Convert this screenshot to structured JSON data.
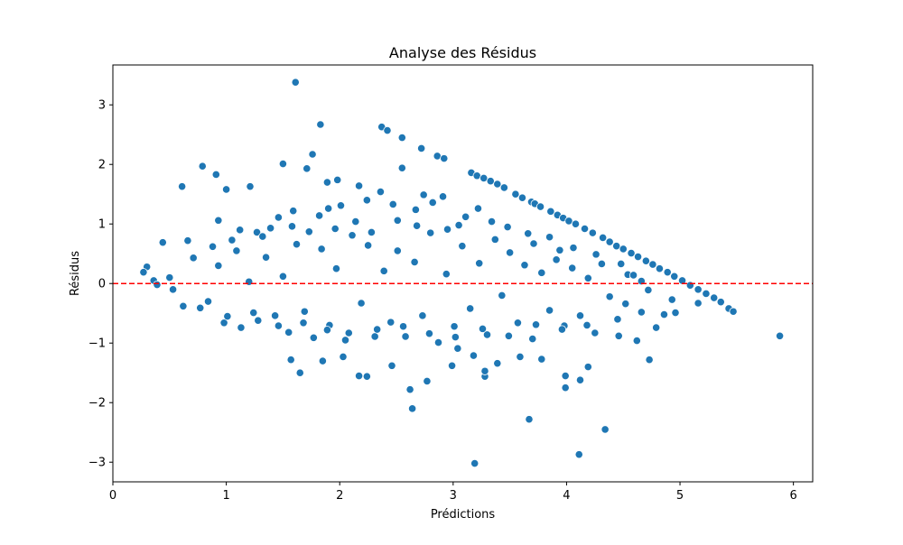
{
  "chart_data": {
    "type": "scatter",
    "title": "Analyse des Résidus",
    "xlabel": "Prédictions",
    "ylabel": "Résidus",
    "xlim": [
      0,
      6.17
    ],
    "ylim": [
      -3.33,
      3.67
    ],
    "xticks": [
      0,
      1,
      2,
      3,
      4,
      5,
      6
    ],
    "yticks": [
      -3,
      -2,
      -1,
      0,
      1,
      2,
      3
    ],
    "xtick_labels": [
      "0",
      "1",
      "2",
      "3",
      "4",
      "5",
      "6"
    ],
    "ytick_labels": [
      "−3",
      "−2",
      "−1",
      "0",
      "1",
      "2",
      "3"
    ],
    "grid": false,
    "reference_line": {
      "y": 0,
      "style": "dashed",
      "color": "#ff0000"
    },
    "marker_color": "#1f77b4",
    "series": [
      {
        "points": [
          [
            1.61,
            3.38
          ],
          [
            1.83,
            2.67
          ],
          [
            2.37,
            2.63
          ],
          [
            2.42,
            2.57
          ],
          [
            2.55,
            2.45
          ],
          [
            2.72,
            2.27
          ],
          [
            1.76,
            2.17
          ],
          [
            0.79,
            1.97
          ],
          [
            1.5,
            2.01
          ],
          [
            1.71,
            1.93
          ],
          [
            0.91,
            1.83
          ],
          [
            2.55,
            1.94
          ],
          [
            2.86,
            2.14
          ],
          [
            2.92,
            2.1
          ],
          [
            1.98,
            1.74
          ],
          [
            1.89,
            1.7
          ],
          [
            2.17,
            1.64
          ],
          [
            0.61,
            1.63
          ],
          [
            1.21,
            1.63
          ],
          [
            1.0,
            1.58
          ],
          [
            3.16,
            1.86
          ],
          [
            3.21,
            1.81
          ],
          [
            3.27,
            1.77
          ],
          [
            3.33,
            1.72
          ],
          [
            3.39,
            1.67
          ],
          [
            3.45,
            1.61
          ],
          [
            3.55,
            1.5
          ],
          [
            3.61,
            1.44
          ],
          [
            3.69,
            1.37
          ],
          [
            3.72,
            1.34
          ],
          [
            3.77,
            1.29
          ],
          [
            3.86,
            1.21
          ],
          [
            3.92,
            1.15
          ],
          [
            3.97,
            1.1
          ],
          [
            4.02,
            1.05
          ],
          [
            4.08,
            1.0
          ],
          [
            4.16,
            0.92
          ],
          [
            4.23,
            0.85
          ],
          [
            4.32,
            0.77
          ],
          [
            4.38,
            0.7
          ],
          [
            4.44,
            0.63
          ],
          [
            4.5,
            0.58
          ],
          [
            4.57,
            0.51
          ],
          [
            4.63,
            0.45
          ],
          [
            4.7,
            0.38
          ],
          [
            4.76,
            0.32
          ],
          [
            4.82,
            0.25
          ],
          [
            4.89,
            0.19
          ],
          [
            4.95,
            0.12
          ],
          [
            5.02,
            0.05
          ],
          [
            5.09,
            -0.03
          ],
          [
            5.16,
            -0.1
          ],
          [
            5.23,
            -0.17
          ],
          [
            5.3,
            -0.24
          ],
          [
            5.36,
            -0.31
          ],
          [
            5.43,
            -0.42
          ],
          [
            5.47,
            -0.47
          ],
          [
            5.88,
            -0.88
          ],
          [
            3.19,
            -3.02
          ],
          [
            4.11,
            -2.87
          ],
          [
            4.34,
            -2.45
          ],
          [
            3.67,
            -2.28
          ],
          [
            2.64,
            -2.1
          ],
          [
            2.62,
            -1.78
          ],
          [
            2.77,
            -1.64
          ],
          [
            3.99,
            -1.75
          ],
          [
            3.99,
            -1.55
          ],
          [
            4.19,
            -1.4
          ],
          [
            3.28,
            -1.56
          ],
          [
            3.28,
            -1.47
          ],
          [
            3.39,
            -1.34
          ],
          [
            3.59,
            -1.23
          ],
          [
            3.78,
            -1.27
          ],
          [
            3.18,
            -1.21
          ],
          [
            3.04,
            -1.09
          ],
          [
            2.99,
            -1.38
          ],
          [
            2.46,
            -1.38
          ],
          [
            2.17,
            -1.55
          ],
          [
            2.24,
            -1.56
          ],
          [
            1.57,
            -1.28
          ],
          [
            1.65,
            -1.5
          ],
          [
            1.85,
            -1.3
          ],
          [
            2.03,
            -1.23
          ],
          [
            4.73,
            -1.28
          ],
          [
            4.62,
            -0.96
          ],
          [
            4.46,
            -0.88
          ],
          [
            4.96,
            -0.49
          ],
          [
            5.16,
            -0.33
          ],
          [
            4.12,
            -1.62
          ],
          [
            4.06,
            0.6
          ],
          [
            3.85,
            0.78
          ],
          [
            3.66,
            0.84
          ],
          [
            4.54,
            0.15
          ],
          [
            4.66,
            0.04
          ],
          [
            3.22,
            1.26
          ],
          [
            3.05,
            0.98
          ],
          [
            2.91,
            1.46
          ],
          [
            2.74,
            1.49
          ],
          [
            2.82,
            1.36
          ],
          [
            2.67,
            1.24
          ],
          [
            2.47,
            1.33
          ],
          [
            2.36,
            1.54
          ],
          [
            2.24,
            1.4
          ],
          [
            2.01,
            1.31
          ],
          [
            1.9,
            1.26
          ],
          [
            1.82,
            1.14
          ],
          [
            1.59,
            1.22
          ],
          [
            1.46,
            1.11
          ],
          [
            1.39,
            0.93
          ],
          [
            1.27,
            0.86
          ],
          [
            1.12,
            0.9
          ],
          [
            0.93,
            1.06
          ],
          [
            0.66,
            0.72
          ],
          [
            0.44,
            0.69
          ],
          [
            0.3,
            0.28
          ],
          [
            0.27,
            0.19
          ],
          [
            0.36,
            0.05
          ],
          [
            0.39,
            -0.02
          ],
          [
            0.5,
            0.1
          ],
          [
            0.53,
            -0.1
          ],
          [
            0.62,
            -0.38
          ],
          [
            0.71,
            0.43
          ],
          [
            0.84,
            -0.3
          ],
          [
            0.93,
            0.3
          ],
          [
            0.98,
            -0.66
          ],
          [
            1.09,
            0.55
          ],
          [
            1.13,
            -0.74
          ],
          [
            1.2,
            0.03
          ],
          [
            1.28,
            -0.62
          ],
          [
            1.35,
            0.44
          ],
          [
            1.43,
            -0.54
          ],
          [
            1.5,
            0.12
          ],
          [
            1.55,
            -0.82
          ],
          [
            1.62,
            0.66
          ],
          [
            1.69,
            -0.47
          ],
          [
            1.77,
            -0.91
          ],
          [
            1.84,
            0.58
          ],
          [
            1.91,
            -0.7
          ],
          [
            1.97,
            0.25
          ],
          [
            2.05,
            -0.95
          ],
          [
            2.11,
            0.81
          ],
          [
            2.19,
            -0.33
          ],
          [
            2.25,
            0.64
          ],
          [
            2.31,
            -0.89
          ],
          [
            2.39,
            0.21
          ],
          [
            2.45,
            -0.65
          ],
          [
            2.51,
            0.55
          ],
          [
            2.58,
            -0.89
          ],
          [
            2.66,
            0.36
          ],
          [
            2.73,
            -0.54
          ],
          [
            2.8,
            0.85
          ],
          [
            2.87,
            -0.99
          ],
          [
            2.94,
            0.16
          ],
          [
            3.01,
            -0.72
          ],
          [
            3.08,
            0.63
          ],
          [
            3.15,
            -0.42
          ],
          [
            3.23,
            0.34
          ],
          [
            3.3,
            -0.86
          ],
          [
            3.37,
            0.74
          ],
          [
            3.43,
            -0.2
          ],
          [
            3.5,
            0.52
          ],
          [
            3.57,
            -0.66
          ],
          [
            3.63,
            0.31
          ],
          [
            3.7,
            -0.93
          ],
          [
            3.78,
            0.18
          ],
          [
            3.85,
            -0.45
          ],
          [
            3.91,
            0.4
          ],
          [
            3.98,
            -0.71
          ],
          [
            4.05,
            0.26
          ],
          [
            4.12,
            -0.54
          ],
          [
            4.19,
            0.09
          ],
          [
            4.25,
            -0.83
          ],
          [
            4.31,
            0.33
          ],
          [
            4.38,
            -0.22
          ],
          [
            4.45,
            -0.6
          ],
          [
            4.52,
            -0.34
          ],
          [
            4.59,
            0.14
          ],
          [
            4.66,
            -0.48
          ],
          [
            4.72,
            -0.11
          ],
          [
            4.79,
            -0.74
          ],
          [
            4.86,
            -0.52
          ],
          [
            4.93,
            -0.27
          ],
          [
            0.88,
            0.62
          ],
          [
            1.05,
            0.73
          ],
          [
            1.32,
            0.79
          ],
          [
            1.58,
            0.96
          ],
          [
            1.73,
            0.87
          ],
          [
            1.96,
            0.92
          ],
          [
            2.14,
            1.04
          ],
          [
            2.28,
            0.86
          ],
          [
            2.51,
            1.06
          ],
          [
            2.68,
            0.97
          ],
          [
            2.95,
            0.91
          ],
          [
            3.11,
            1.12
          ],
          [
            3.34,
            1.04
          ],
          [
            3.48,
            0.95
          ],
          [
            3.71,
            0.67
          ],
          [
            3.94,
            0.56
          ],
          [
            4.26,
            0.49
          ],
          [
            4.48,
            0.33
          ],
          [
            0.77,
            -0.41
          ],
          [
            1.01,
            -0.55
          ],
          [
            1.24,
            -0.49
          ],
          [
            1.46,
            -0.71
          ],
          [
            1.68,
            -0.66
          ],
          [
            1.89,
            -0.78
          ],
          [
            2.08,
            -0.83
          ],
          [
            2.33,
            -0.77
          ],
          [
            2.56,
            -0.72
          ],
          [
            2.79,
            -0.84
          ],
          [
            3.02,
            -0.9
          ],
          [
            3.26,
            -0.76
          ],
          [
            3.49,
            -0.88
          ],
          [
            3.73,
            -0.69
          ],
          [
            3.96,
            -0.77
          ],
          [
            4.18,
            -0.7
          ]
        ]
      }
    ]
  }
}
